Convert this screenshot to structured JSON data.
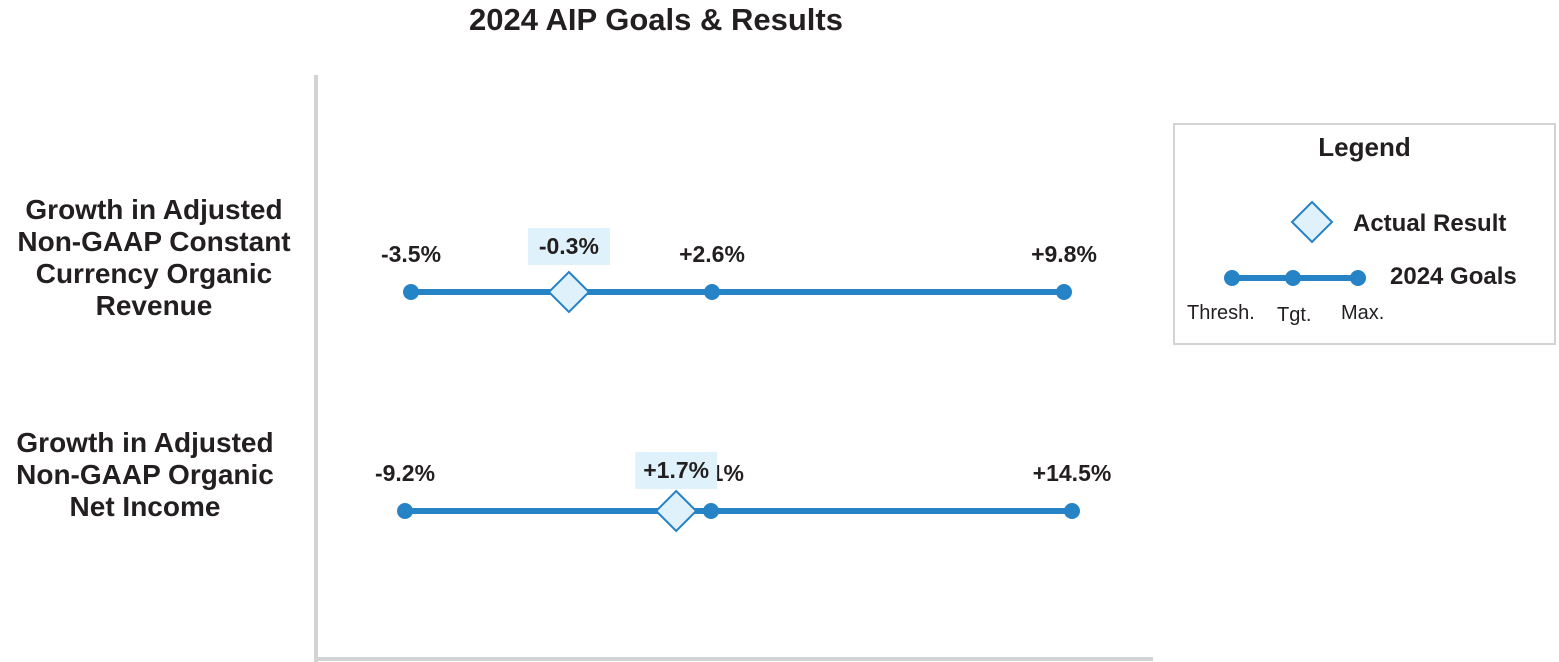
{
  "chart_data": {
    "type": "range",
    "title": "2024 AIP Goals & Results",
    "rows": [
      {
        "label_lines": [
          "Growth in  Adjusted",
          "Non-GAAP Constant",
          "Currency Organic",
          "Revenue"
        ],
        "threshold": -3.5,
        "target": 2.6,
        "maximum": 9.8,
        "actual": -0.3,
        "threshold_label": "-3.5%",
        "target_label": "+2.6%",
        "maximum_label": "+9.8%",
        "actual_label": "-0.3%"
      },
      {
        "label_lines": [
          "Growth in  Adjusted",
          "Non-GAAP Organic",
          "Net Income"
        ],
        "threshold": -9.2,
        "target": 3.1,
        "maximum": 14.5,
        "actual": 1.7,
        "threshold_label": "-9.2%",
        "target_label": "+3.1%",
        "maximum_label": "+14.5%",
        "actual_label": "+1.7%"
      }
    ]
  },
  "legend": {
    "title": "Legend",
    "actual": "Actual Result",
    "goals": "2024 Goals",
    "thresh": "Thresh.",
    "tgt": "Tgt.",
    "max": "Max."
  },
  "colors": {
    "line": "#2583c6",
    "diamond_fill": "#dff1fa",
    "label_bg": "#dff1fa",
    "axis": "#d1d3d4",
    "text": "#231f20"
  }
}
